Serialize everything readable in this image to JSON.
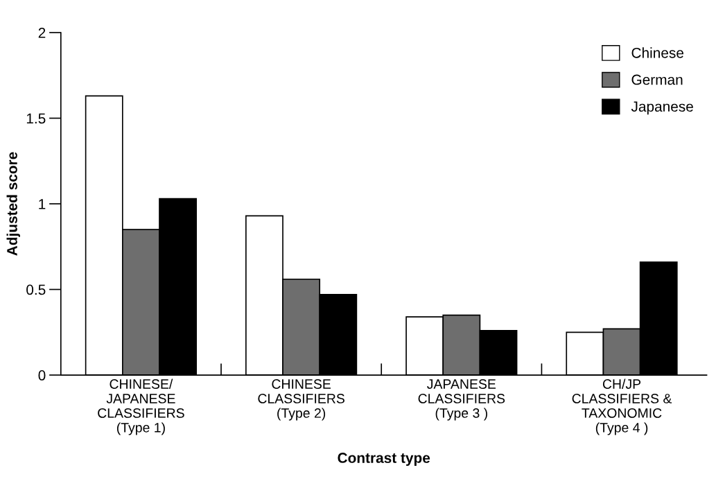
{
  "chart_data": {
    "type": "bar",
    "xlabel": "Contrast type",
    "ylabel": "Adjusted score",
    "categories": [
      "CHINESE/\nJAPANESE\nCLASSIFIERS\n(Type 1)",
      "CHINESE\nCLASSIFIERS\n(Type 2)",
      "JAPANESE\nCLASSIFIERS\n(Type 3 )",
      "CH/JP\nCLASSIFIERS &\nTAXONOMIC\n(Type 4 )"
    ],
    "series": [
      {
        "name": "Chinese",
        "color": "#ffffff",
        "values": [
          1.63,
          0.93,
          0.34,
          0.25
        ]
      },
      {
        "name": "German",
        "color": "#6e6e6e",
        "values": [
          0.85,
          0.56,
          0.35,
          0.27
        ]
      },
      {
        "name": "Japanese",
        "color": "#000000",
        "values": [
          1.03,
          0.47,
          0.26,
          0.66
        ]
      }
    ],
    "ylim": [
      0,
      2
    ],
    "yticks": [
      0,
      {
        "value": 0.5,
        "label": "0.5"
      },
      1,
      {
        "value": 1.5,
        "label": "1.5"
      },
      2
    ],
    "grid": false,
    "legend": "top right"
  }
}
